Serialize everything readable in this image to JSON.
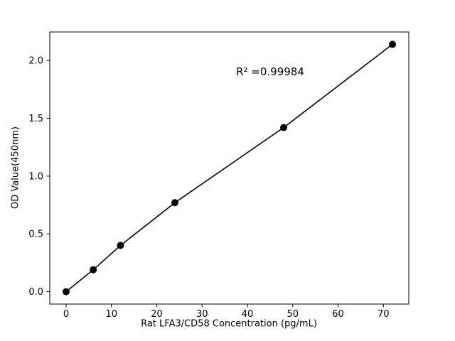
{
  "chart_data": {
    "type": "scatter",
    "title": "",
    "xlabel": "Rat LFA3/CD58 Concentration (pg/mL)",
    "ylabel": "OD Value(450nm)",
    "annotation": {
      "text": "R² =0.99984"
    },
    "x": [
      0,
      6,
      12,
      24,
      48,
      72
    ],
    "y": [
      0.0,
      0.19,
      0.4,
      0.77,
      1.42,
      2.14
    ],
    "series": [
      {
        "name": "standard-curve",
        "marker": "circle",
        "line": true
      }
    ],
    "xlim": [
      -3.6,
      75.6
    ],
    "ylim": [
      -0.107,
      2.247
    ],
    "xticks": [
      0,
      10,
      20,
      30,
      40,
      50,
      60,
      70
    ],
    "xtick_labels": [
      "0",
      "10",
      "20",
      "30",
      "40",
      "50",
      "60",
      "70"
    ],
    "yticks": [
      0.0,
      0.5,
      1.0,
      1.5,
      2.0
    ],
    "ytick_labels": [
      "0.0",
      "0.5",
      "1.0",
      "1.5",
      "2.0"
    ],
    "grid": false,
    "legend": "none",
    "colors": {
      "line": "#000000",
      "marker": "#000000",
      "text": "#000000",
      "frame": "#000000",
      "background": "#ffffff"
    }
  }
}
